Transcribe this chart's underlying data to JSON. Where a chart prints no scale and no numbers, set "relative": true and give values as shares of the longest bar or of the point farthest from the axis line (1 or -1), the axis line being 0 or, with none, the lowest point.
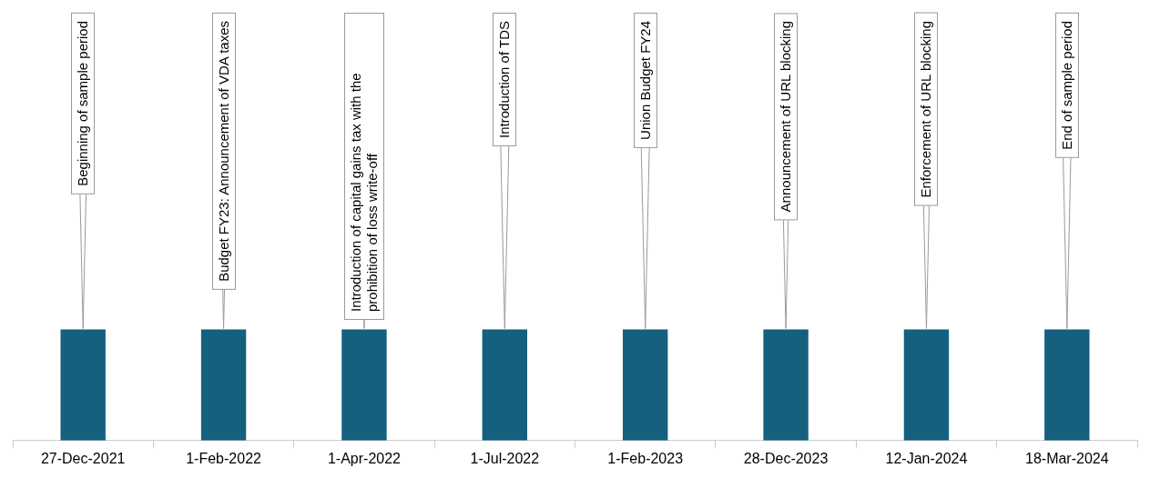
{
  "chart_data": {
    "type": "bar",
    "relative": true,
    "categories": [
      "27-Dec-2021",
      "1-Feb-2022",
      "1-Apr-2022",
      "1-Jul-2022",
      "1-Feb-2023",
      "28-Dec-2023",
      "12-Jan-2024",
      "18-Mar-2024"
    ],
    "values": [
      1,
      1,
      1,
      1,
      1,
      1,
      1,
      1
    ],
    "color": "#155f7f",
    "annotations": [
      "Beginning of sample period",
      "Budget FY23: Announcement of VDA taxes",
      "Introduction of capital gains tax with the prohibition of loss write-off",
      "Introduction of TDS",
      "Union Budget FY24",
      "Announcement of URL blocking",
      "Enforcement of URL blocking",
      "End of sample period"
    ]
  }
}
